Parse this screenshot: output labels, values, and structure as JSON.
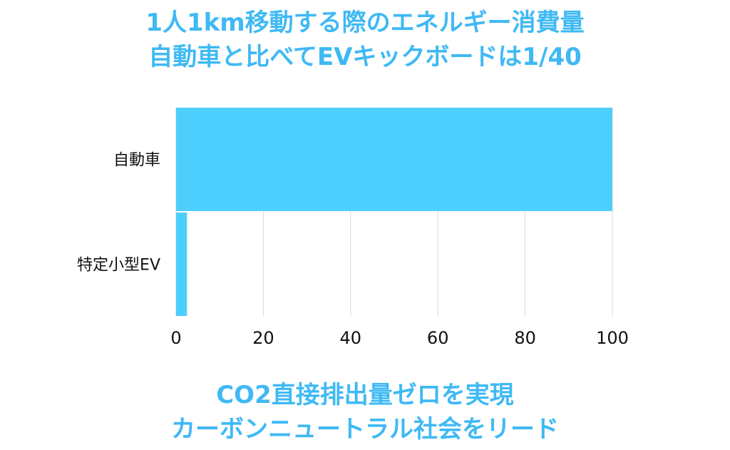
{
  "title": {
    "line1": "1人1km移動する際のエネルギー消費量",
    "line2": "自動車と比べてEVキックボードは1/40"
  },
  "footer": {
    "line1": "CO2直接排出量ゼロを実現",
    "line2": "カーボンニュートラル社会をリード"
  },
  "colors": {
    "accent": "#3fb9f4",
    "bar": "#4dcffd",
    "grid": "#d9d9d9",
    "text": "#111111"
  },
  "chart_data": {
    "type": "bar",
    "orientation": "horizontal",
    "categories": [
      "自動車",
      "特定小型EV"
    ],
    "values": [
      100,
      2.5
    ],
    "xlim": [
      0,
      100
    ],
    "xticks": [
      "0",
      "20",
      "40",
      "60",
      "80",
      "100"
    ],
    "grid": true,
    "legend": "none"
  }
}
